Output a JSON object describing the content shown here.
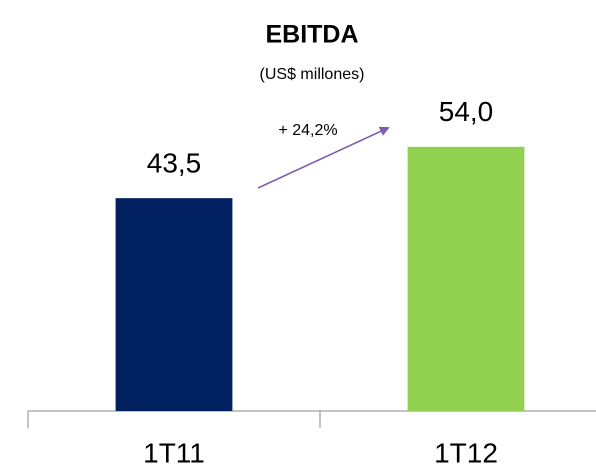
{
  "chart_data": {
    "type": "bar",
    "title": "EBITDA",
    "subtitle": "(US$ millones)",
    "categories": [
      "1T11",
      "1T12"
    ],
    "values": [
      43.5,
      54.0
    ],
    "value_labels": [
      "43,5",
      "54,0"
    ],
    "colors": [
      "#002060",
      "#92d050"
    ],
    "ylim": [
      0,
      84
    ],
    "annotation": "+ 24,2%"
  }
}
